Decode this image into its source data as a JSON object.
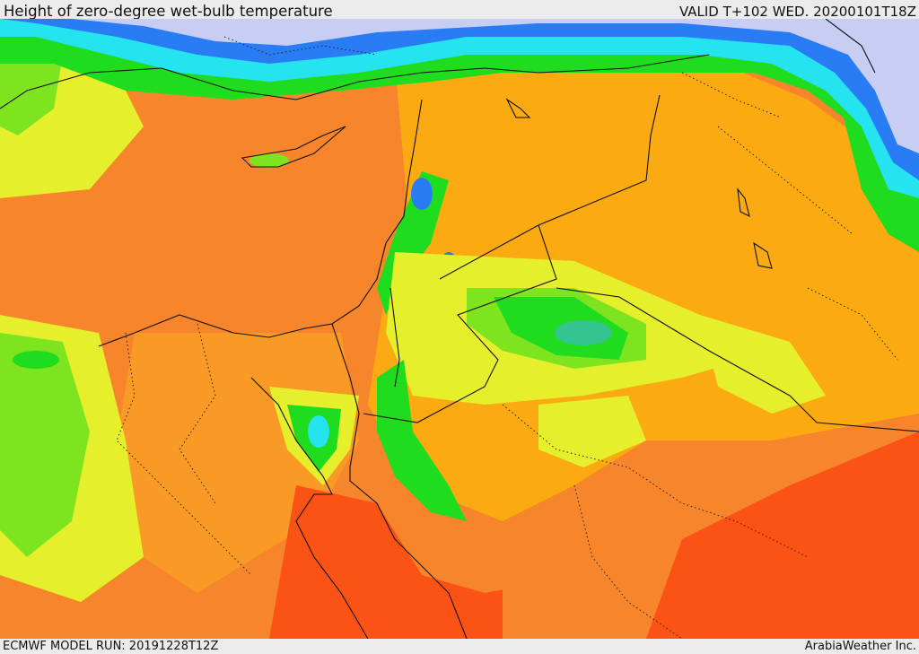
{
  "header": {
    "title": "Height of zero-degree wet-bulb temperature",
    "valid": "VALID T+102 WED. 20200101T18Z"
  },
  "footer": {
    "model_run": "ECMWF MODEL RUN: 20191228T12Z",
    "credit": "ArabiaWeather Inc."
  },
  "colors": {
    "sea_orange": "#f6852b",
    "land_orange": "#fbaa12",
    "red_orange": "#fb5215",
    "yellow": "#e6ef2c",
    "light_green": "#7fe420",
    "green": "#1fdc1f",
    "teal": "#33c490",
    "cyan": "#26e3f0",
    "blue": "#2a7cf4",
    "lavender": "#c7cdf3",
    "boundary": "#111111"
  }
}
